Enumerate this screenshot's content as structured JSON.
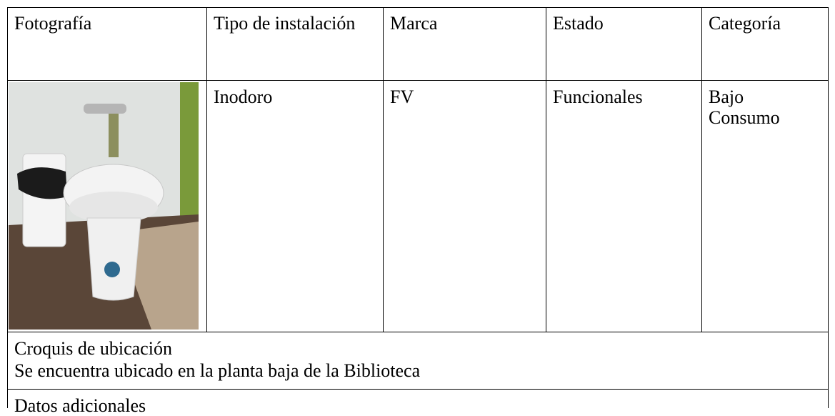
{
  "table": {
    "header": [
      "Fotografía",
      "Tipo de instalación",
      "Marca",
      "Estado",
      "Categoría"
    ],
    "rows": [
      [
        "Inodoro",
        "FV",
        "Funcionales",
        "Bajo Consumo"
      ]
    ]
  },
  "location": {
    "title": "Croquis de ubicación",
    "text": "Se encuentra ubicado en la planta baja de la Biblioteca"
  },
  "additional": {
    "title": "Datos adicionales"
  }
}
